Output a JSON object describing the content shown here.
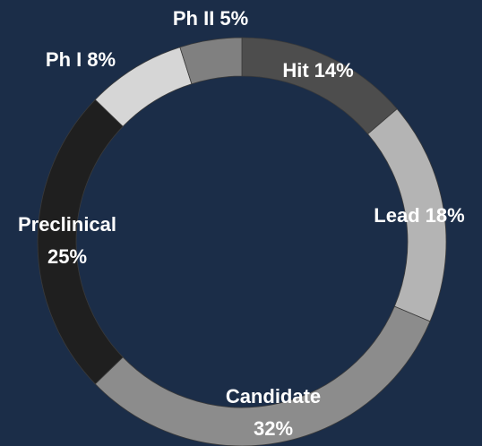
{
  "chart_data": {
    "type": "donut",
    "categories": [
      "Hit",
      "Lead",
      "Candidate",
      "Preclinical",
      "Ph I",
      "Ph II"
    ],
    "values": [
      14,
      18,
      32,
      25,
      8,
      5
    ],
    "value_labels": [
      "14%",
      "18%",
      "32%",
      "25%",
      "8%",
      "5%"
    ],
    "colors": [
      "#4d4d4d",
      "#b4b4b4",
      "#8c8c8c",
      "#1f1f1f",
      "#d6d6d6",
      "#808080"
    ]
  }
}
